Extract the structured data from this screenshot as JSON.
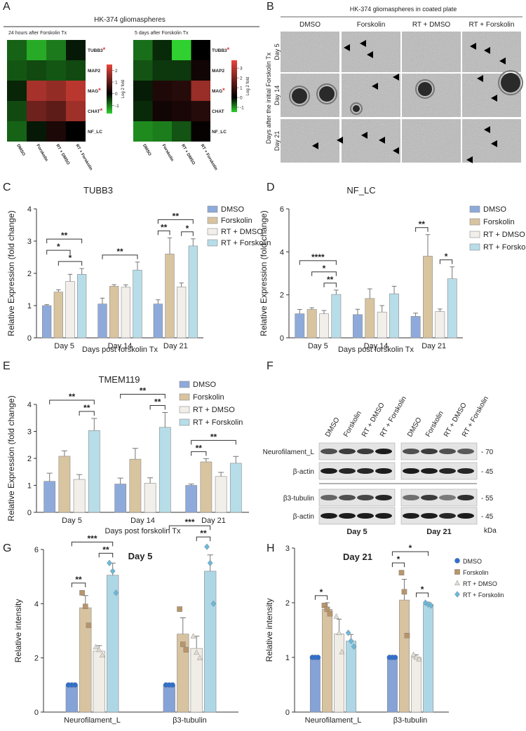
{
  "panel_labels": [
    "A",
    "B",
    "C",
    "D",
    "E",
    "F",
    "G",
    "H"
  ],
  "panel_a": {
    "title": "HK-374 gliomaspheres"
  },
  "panel_b": {
    "title": "HK-374 gliomaspheres in coated plate",
    "columns": [
      "DMSO",
      "Forskolin",
      "RT + DMSO",
      "RT + Forskolin"
    ],
    "rows": [
      "Day 5",
      "Day 14",
      "Day 21"
    ],
    "ylabel": "Days after the initial Forskolin Tx"
  },
  "panel_f": {
    "blots": [
      {
        "day": "Day 5",
        "lanes": [
          "DMSO",
          "Forskolin",
          "RT + DMSO",
          "RT + Forskolin"
        ]
      },
      {
        "day": "Day 21",
        "lanes": [
          "DMSO",
          "Forskolin",
          "RT + DMSO",
          "RT + Forskolin"
        ]
      }
    ],
    "rows": [
      "Neurofilament_L",
      "β-actin",
      "β3-tubulin",
      "β-actin"
    ],
    "markers": [
      "- 70",
      "- 45",
      "- 55",
      "- 45"
    ],
    "unit": "kDa"
  },
  "chart_data": [
    {
      "type": "heatmap",
      "subtitle": "24 hours after Forskolin Tx",
      "categories": [
        "DMSO",
        "Forskolin",
        "RT + DMSO",
        "RT + Forskolin"
      ],
      "rows": [
        "TUBB3",
        "MAP2",
        "MAG",
        "CHAT",
        "NF_LC"
      ],
      "row_flags": [
        "*",
        null,
        "*",
        "*",
        null
      ],
      "values": [
        [
          -0.8,
          -1.4,
          -1.0,
          -0.2
        ],
        [
          -0.7,
          -0.6,
          -0.7,
          -0.6
        ],
        [
          -0.3,
          1.8,
          1.6,
          2.0
        ],
        [
          -0.6,
          1.2,
          1.0,
          1.7
        ],
        [
          -0.8,
          -0.2,
          0.3,
          0.0
        ]
      ],
      "clim": [
        -1.7,
        2.5
      ],
      "cticks": [
        -1,
        0,
        1,
        2
      ],
      "colorbar_label": "Log 2 fold",
      "colors": [
        "#2fd02f",
        "#000000",
        "#e8453c"
      ]
    },
    {
      "type": "heatmap",
      "subtitle": "5 days after Forskolin Tx",
      "categories": [
        "DMSO",
        "Forskolin",
        "RT + DMSO",
        "RT + Forskolin"
      ],
      "rows": [
        "TUBB3",
        "MAP2",
        "MAG",
        "CHAT",
        "NF_LC"
      ],
      "row_flags": [
        "*",
        null,
        "*",
        null,
        null
      ],
      "values": [
        [
          -0.8,
          -0.3,
          -1.5,
          0.0
        ],
        [
          -0.6,
          -0.4,
          -0.4,
          0.3
        ],
        [
          -0.2,
          0.5,
          0.6,
          2.5
        ],
        [
          -0.3,
          0.3,
          0.4,
          0.6
        ],
        [
          -1.0,
          -0.9,
          -0.6,
          0.1
        ]
      ],
      "clim": [
        -1.5,
        3.8
      ],
      "cticks": [
        -1,
        0,
        1,
        2,
        3
      ],
      "colorbar_label": "Log 2 fold",
      "colors": [
        "#2fd02f",
        "#000000",
        "#e8453c"
      ]
    },
    {
      "type": "bar",
      "title": "TUBB3",
      "xlabel": "Days post forskolin Tx",
      "ylabel": "Relative Expression (fold change)",
      "categories": [
        "Day 5",
        "Day 14",
        "Day 21"
      ],
      "ylim": [
        0,
        4
      ],
      "yticks": [
        0,
        1,
        2,
        3,
        4
      ],
      "legend": true,
      "series": [
        {
          "name": "DMSO",
          "color": "#8eaadb",
          "values": [
            1.0,
            1.05,
            1.05
          ],
          "errors": [
            0.03,
            0.18,
            0.13
          ]
        },
        {
          "name": "Forskolin",
          "color": "#d9c4a0",
          "values": [
            1.42,
            1.6,
            2.6
          ],
          "errors": [
            0.07,
            0.05,
            0.5
          ]
        },
        {
          "name": "RT + DMSO",
          "color": "#f2efea",
          "values": [
            1.75,
            1.57,
            1.58
          ],
          "errors": [
            0.22,
            0.07,
            0.12
          ]
        },
        {
          "name": "RT + Forskolin",
          "color": "#b7dde8",
          "values": [
            1.97,
            2.1,
            2.85
          ],
          "errors": [
            0.18,
            0.25,
            0.22
          ]
        }
      ],
      "brackets": [
        {
          "category": 0,
          "from": 1,
          "to": 3,
          "text": "*"
        },
        {
          "category": 0,
          "from": 0,
          "to": 2,
          "text": "*"
        },
        {
          "category": 0,
          "from": 0,
          "to": 3,
          "text": "**"
        },
        {
          "category": 1,
          "from": 0,
          "to": 3,
          "text": "**"
        },
        {
          "category": 2,
          "from": 0,
          "to": 1,
          "text": "**"
        },
        {
          "category": 2,
          "from": 2,
          "to": 3,
          "text": "*"
        },
        {
          "category": 2,
          "from": 0,
          "to": 3,
          "text": "**"
        }
      ]
    },
    {
      "type": "bar",
      "title": "NF_LC",
      "xlabel": "Days post forskolin Tx",
      "ylabel": "Relative Expression (fold change)",
      "categories": [
        "Day 5",
        "Day 14",
        "Day 21"
      ],
      "ylim": [
        0,
        6
      ],
      "yticks": [
        0,
        2,
        4,
        6
      ],
      "legend": true,
      "series": [
        {
          "name": "DMSO",
          "color": "#8eaadb",
          "values": [
            1.12,
            1.08,
            1.0
          ],
          "errors": [
            0.2,
            0.25,
            0.15
          ]
        },
        {
          "name": "Forskolin",
          "color": "#d9c4a0",
          "values": [
            1.32,
            1.83,
            3.8
          ],
          "errors": [
            0.08,
            0.45,
            1.0
          ]
        },
        {
          "name": "RT + DMSO",
          "color": "#f2efea",
          "values": [
            1.12,
            1.2,
            1.22
          ],
          "errors": [
            0.15,
            0.3,
            0.12
          ]
        },
        {
          "name": "RT + Forskolin",
          "color": "#b7dde8",
          "values": [
            2.02,
            2.05,
            2.75
          ],
          "errors": [
            0.2,
            0.35,
            0.55
          ]
        }
      ],
      "brackets": [
        {
          "category": 0,
          "from": 2,
          "to": 3,
          "text": "**"
        },
        {
          "category": 0,
          "from": 1,
          "to": 3,
          "text": "*"
        },
        {
          "category": 0,
          "from": 0,
          "to": 3,
          "text": "****"
        },
        {
          "category": 2,
          "from": 0,
          "to": 1,
          "text": "**"
        },
        {
          "category": 2,
          "from": 2,
          "to": 3,
          "text": "*"
        }
      ]
    },
    {
      "type": "bar",
      "title": "TMEM119",
      "xlabel": "Days post forskolin Tx",
      "ylabel": "Relative Expression (fold change)",
      "categories": [
        "Day 5",
        "Day 14",
        "Day 21"
      ],
      "ylim": [
        0,
        4
      ],
      "yticks": [
        0,
        1,
        2,
        3,
        4
      ],
      "legend": true,
      "series": [
        {
          "name": "DMSO",
          "color": "#8eaadb",
          "values": [
            1.15,
            1.05,
            1.0
          ],
          "errors": [
            0.3,
            0.22,
            0.05
          ]
        },
        {
          "name": "Forskolin",
          "color": "#d9c4a0",
          "values": [
            2.08,
            1.97,
            1.87
          ],
          "errors": [
            0.2,
            0.4,
            0.12
          ]
        },
        {
          "name": "RT + DMSO",
          "color": "#f2efea",
          "values": [
            1.22,
            1.08,
            1.33
          ],
          "errors": [
            0.18,
            0.2,
            0.15
          ]
        },
        {
          "name": "RT + Forskolin",
          "color": "#b7dde8",
          "values": [
            3.03,
            3.15,
            1.82
          ],
          "errors": [
            0.45,
            0.55,
            0.25
          ]
        }
      ],
      "brackets": [
        {
          "category": 0,
          "from": 2,
          "to": 3,
          "text": "**"
        },
        {
          "category": 0,
          "from": 0,
          "to": 3,
          "text": "**"
        },
        {
          "category": 1,
          "from": 2,
          "to": 3,
          "text": "**"
        },
        {
          "category": 1,
          "from": 0,
          "to": 3,
          "text": "**"
        },
        {
          "category": 2,
          "from": 0,
          "to": 1,
          "text": "**"
        },
        {
          "category": 2,
          "from": 0,
          "to": 3,
          "text": "**"
        }
      ]
    },
    {
      "type": "bar",
      "title": "Day 5",
      "ylabel": "Relative intensity",
      "categories": [
        "Neurofilament_L",
        "β3-tubulin"
      ],
      "ylim": [
        0,
        6
      ],
      "yticks": [
        0,
        2,
        4,
        6
      ],
      "legend": false,
      "series": [
        {
          "name": "DMSO",
          "color": "#86a3d8",
          "marker": "circle",
          "marker_color": "#2e6fcf",
          "values": [
            1.0,
            1.0
          ],
          "errors": [
            0,
            0
          ],
          "points": [
            [
              1,
              1,
              1
            ],
            [
              1,
              1,
              1
            ]
          ]
        },
        {
          "name": "Forskolin",
          "color": "#d8c3a0",
          "marker": "square",
          "marker_color": "#b8956b",
          "values": [
            3.85,
            2.88
          ],
          "errors": [
            0.45,
            0.6
          ],
          "points": [
            [
              4.4,
              3.9,
              3.2
            ],
            [
              3.8,
              2.5,
              2.3
            ]
          ]
        },
        {
          "name": "RT + DMSO",
          "color": "#f0ede6",
          "marker": "triangle",
          "marker_color": "#e2ddd2",
          "values": [
            2.25,
            2.35
          ],
          "errors": [
            0.2,
            0.45
          ],
          "points": [
            [
              2.4,
              2.3,
              2.1
            ],
            [
              2.8,
              2.2,
              2.0
            ]
          ]
        },
        {
          "name": "RT + Forskolin",
          "color": "#aed7e6",
          "marker": "diamond",
          "marker_color": "#6cb8d8",
          "values": [
            5.05,
            5.2
          ],
          "errors": [
            0.45,
            0.6
          ],
          "points": [
            [
              5.5,
              5.2,
              4.4
            ],
            [
              6.1,
              5.5,
              4.0
            ]
          ]
        }
      ],
      "brackets": [
        {
          "category": 0,
          "from": 0,
          "to": 1,
          "text": "**"
        },
        {
          "category": 0,
          "from": 2,
          "to": 3,
          "text": "**"
        },
        {
          "category": 0,
          "from": 0,
          "to": 3,
          "text": "***"
        },
        {
          "category": 1,
          "from": 2,
          "to": 3,
          "text": "**"
        },
        {
          "category": 1,
          "from": 0,
          "to": 3,
          "text": "***"
        }
      ]
    },
    {
      "type": "bar",
      "title": "Day 21",
      "ylabel": "Relative intensity",
      "categories": [
        "Neurofilament_L",
        "β3-tubulin"
      ],
      "ylim": [
        0,
        3
      ],
      "yticks": [
        0,
        1,
        2,
        3
      ],
      "legend": true,
      "series": [
        {
          "name": "DMSO",
          "color": "#86a3d8",
          "marker": "circle",
          "marker_color": "#2e6fcf",
          "values": [
            1.0,
            1.0
          ],
          "errors": [
            0,
            0
          ],
          "points": [
            [
              1,
              1,
              1
            ],
            [
              1,
              1,
              1
            ]
          ]
        },
        {
          "name": "Forskolin",
          "color": "#d8c3a0",
          "marker": "square",
          "marker_color": "#b8956b",
          "values": [
            1.88,
            2.05
          ],
          "errors": [
            0.12,
            0.38
          ],
          "points": [
            [
              1.95,
              1.88,
              1.8
            ],
            [
              2.55,
              2.2,
              1.4
            ]
          ]
        },
        {
          "name": "RT + DMSO",
          "color": "#f0ede6",
          "marker": "triangle",
          "marker_color": "#e2ddd2",
          "values": [
            1.43,
            1.0
          ],
          "errors": [
            0.27,
            0.05
          ],
          "points": [
            [
              1.75,
              1.45,
              1.1
            ],
            [
              1.05,
              1.0,
              0.97
            ]
          ]
        },
        {
          "name": "RT + Forskolin",
          "color": "#aed7e6",
          "marker": "diamond",
          "marker_color": "#6cb8d8",
          "values": [
            1.3,
            1.97
          ],
          "errors": [
            0.12,
            0.04
          ],
          "points": [
            [
              1.45,
              1.3,
              1.2
            ],
            [
              2.0,
              1.97,
              1.95
            ]
          ]
        }
      ],
      "brackets": [
        {
          "category": 0,
          "from": 0,
          "to": 1,
          "text": "*"
        },
        {
          "category": 1,
          "from": 0,
          "to": 1,
          "text": "*"
        },
        {
          "category": 1,
          "from": 2,
          "to": 3,
          "text": "*"
        },
        {
          "category": 1,
          "from": 0,
          "to": 3,
          "text": "*"
        }
      ]
    }
  ]
}
